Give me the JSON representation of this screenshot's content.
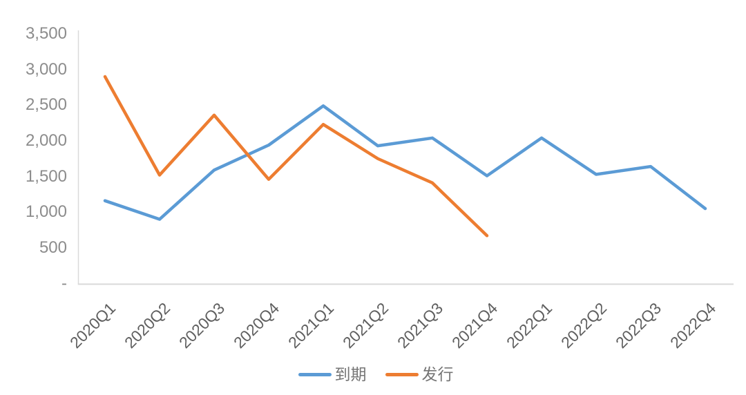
{
  "chart_data": {
    "type": "line",
    "title": "",
    "xlabel": "",
    "ylabel": "",
    "categories": [
      "2020Q1",
      "2020Q2",
      "2020Q3",
      "2020Q4",
      "2021Q1",
      "2021Q2",
      "2021Q3",
      "2021Q4",
      "2022Q1",
      "2022Q2",
      "2022Q3",
      "2022Q4"
    ],
    "series": [
      {
        "name": "到期",
        "color": "#5B9BD5",
        "values": [
          1160,
          900,
          1590,
          1940,
          2490,
          1930,
          2040,
          1510,
          2040,
          1530,
          1640,
          1050
        ]
      },
      {
        "name": "发行",
        "color": "#ED7D31",
        "values": [
          2900,
          1520,
          2360,
          1460,
          2230,
          1750,
          1410,
          670
        ]
      }
    ],
    "ylim": [
      0,
      3500
    ],
    "ytick_step": 500,
    "ytick_labels": [
      "-",
      "500",
      "1,000",
      "1,500",
      "2,000",
      "2,500",
      "3,000",
      "3,500"
    ],
    "grid": false,
    "legend_position": "bottom",
    "colors": {
      "background": "#FFFFFF",
      "axis_line": "#D9D9D9",
      "y_tick_label": "#8C8C8C",
      "x_tick_label": "#5F5F5F",
      "legend_text": "#757575"
    }
  }
}
